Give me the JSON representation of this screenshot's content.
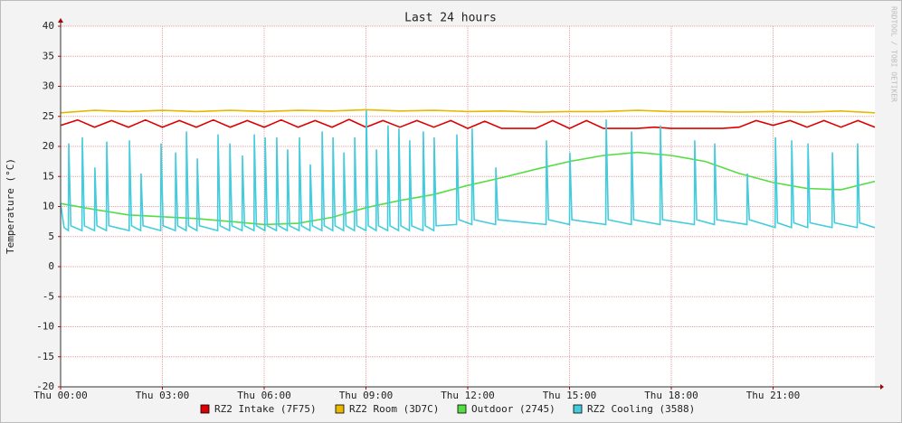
{
  "chart_data": {
    "type": "line",
    "title": "Last 24 hours",
    "y_label": "Temperature (°C)",
    "watermark": "RRDTOOL / TOBI OETIKER",
    "xlim": [
      0,
      24
    ],
    "xticks": [
      {
        "value": 0,
        "label": "Thu 00:00"
      },
      {
        "value": 3,
        "label": "Thu 03:00"
      },
      {
        "value": 6,
        "label": "Thu 06:00"
      },
      {
        "value": 9,
        "label": "Thu 09:00"
      },
      {
        "value": 12,
        "label": "Thu 12:00"
      },
      {
        "value": 15,
        "label": "Thu 15:00"
      },
      {
        "value": 18,
        "label": "Thu 18:00"
      },
      {
        "value": 21,
        "label": "Thu 21:00"
      }
    ],
    "ylim": [
      -20,
      40
    ],
    "yticks": [
      -20,
      -15,
      -10,
      -5,
      0,
      5,
      10,
      15,
      20,
      25,
      30,
      35,
      40
    ],
    "grid": true,
    "legend": "bottom",
    "series": [
      {
        "name": "RZ2 Intake (7F75)",
        "color": "#dd0000",
        "x": [
          0,
          0.5,
          1,
          1.5,
          2,
          2.5,
          3,
          3.5,
          4,
          4.5,
          5,
          5.5,
          6,
          6.5,
          7,
          7.5,
          8,
          8.5,
          9,
          9.5,
          10,
          10.5,
          11,
          11.5,
          12,
          12.5,
          13,
          13.5,
          14,
          14.5,
          15,
          15.5,
          16,
          16.5,
          17,
          17.5,
          18,
          18.5,
          19,
          19.5,
          20,
          20.5,
          21,
          21.5,
          22,
          22.5,
          23,
          23.5,
          24
        ],
        "values": [
          23.5,
          24.4,
          23.2,
          24.3,
          23.2,
          24.4,
          23.2,
          24.3,
          23.2,
          24.4,
          23.2,
          24.3,
          23.2,
          24.4,
          23.2,
          24.3,
          23.2,
          24.5,
          23.2,
          24.3,
          23.2,
          24.3,
          23.2,
          24.3,
          23,
          24.2,
          23,
          23,
          23,
          24.3,
          23,
          24.3,
          23,
          23,
          23,
          23.2,
          23,
          23,
          23,
          23,
          23.2,
          24.3,
          23.5,
          24.3,
          23.2,
          24.3,
          23.2,
          24.3,
          23.2
        ]
      },
      {
        "name": "RZ2 Room (3D7C)",
        "color": "#e8b800",
        "x": [
          0,
          1,
          2,
          3,
          4,
          5,
          6,
          7,
          8,
          9,
          10,
          11,
          12,
          13,
          14,
          15,
          16,
          17,
          18,
          19,
          20,
          21,
          22,
          23,
          24
        ],
        "values": [
          25.6,
          26,
          25.8,
          26,
          25.8,
          26,
          25.8,
          26,
          25.9,
          26.1,
          25.9,
          26,
          25.8,
          25.9,
          25.7,
          25.8,
          25.8,
          26,
          25.8,
          25.8,
          25.7,
          25.8,
          25.7,
          25.9,
          25.6
        ]
      },
      {
        "name": "Outdoor (2745)",
        "color": "#55dd44",
        "x": [
          0,
          1,
          2,
          3,
          4,
          5,
          6,
          7,
          8,
          9,
          10,
          11,
          12,
          13,
          14,
          15,
          16,
          17,
          18,
          19,
          20,
          21,
          22,
          23,
          24
        ],
        "values": [
          10.5,
          9.5,
          8.6,
          8.3,
          8.0,
          7.5,
          7.0,
          7.2,
          8.2,
          9.8,
          11,
          12,
          13.5,
          14.8,
          16.2,
          17.5,
          18.5,
          19,
          18.5,
          17.5,
          15.5,
          14,
          13,
          12.8,
          14.2
        ]
      },
      {
        "name": "RZ2 Cooling (3588)",
        "color": "#44ccdd",
        "x": [
          0,
          0.1,
          0.23,
          0.24,
          0.3,
          0.63,
          0.64,
          0.7,
          1.0,
          1.01,
          1.07,
          1.35,
          1.36,
          1.42,
          2.02,
          2.03,
          2.09,
          2.36,
          2.37,
          2.43,
          2.95,
          2.96,
          3.02,
          3.38,
          3.39,
          3.45,
          3.7,
          3.71,
          3.77,
          4.02,
          4.03,
          4.09,
          4.63,
          4.64,
          4.7,
          4.98,
          4.99,
          5.05,
          5.35,
          5.36,
          5.42,
          5.7,
          5.71,
          5.77,
          6.02,
          6.03,
          6.09,
          6.36,
          6.37,
          6.43,
          6.68,
          6.69,
          6.75,
          7.03,
          7.04,
          7.1,
          7.35,
          7.36,
          7.42,
          7.7,
          7.71,
          7.77,
          8.02,
          8.03,
          8.09,
          8.34,
          8.35,
          8.41,
          8.66,
          8.67,
          8.73,
          9.0,
          9.01,
          9.07,
          9.3,
          9.31,
          9.37,
          9.64,
          9.65,
          9.71,
          9.96,
          9.97,
          10.03,
          10.28,
          10.29,
          10.35,
          10.68,
          10.69,
          10.75,
          11.0,
          11.01,
          11.07,
          11.67,
          11.68,
          11.74,
          12.12,
          12.13,
          12.19,
          12.82,
          12.83,
          12.89,
          14.31,
          14.32,
          14.38,
          15.0,
          15.01,
          15.07,
          16.07,
          16.08,
          16.14,
          16.82,
          16.83,
          16.89,
          17.67,
          17.68,
          17.74,
          18.68,
          18.69,
          18.75,
          19.27,
          19.28,
          19.34,
          20.23,
          20.24,
          20.3,
          21.06,
          21.07,
          21.13,
          21.54,
          21.55,
          21.61,
          22.02,
          22.03,
          22.09,
          22.74,
          22.75,
          22.81,
          23.48,
          23.49,
          23.55,
          24
        ],
        "values": [
          10.5,
          6.5,
          6,
          20.5,
          6.8,
          6,
          21.5,
          6.8,
          6,
          16.5,
          6.8,
          6,
          20.8,
          6.8,
          6,
          21,
          6.8,
          6,
          15.5,
          6.8,
          6,
          20.5,
          6.8,
          6,
          19,
          6.8,
          6,
          22.5,
          6.8,
          6,
          18,
          6.8,
          6,
          22,
          6.8,
          6,
          20.5,
          6.8,
          6,
          18.5,
          6.8,
          6,
          22,
          6.8,
          6,
          21.5,
          6.8,
          6,
          21.5,
          6.8,
          6,
          19.5,
          6.8,
          6,
          21.5,
          6.8,
          6,
          17,
          6.8,
          6,
          22.5,
          6.8,
          6,
          21.5,
          6.8,
          6,
          19,
          6.8,
          6,
          21.5,
          6.8,
          6,
          26,
          6.8,
          6,
          19.5,
          6.8,
          6,
          23.5,
          6.8,
          6,
          23,
          6.8,
          6,
          21,
          6.8,
          6,
          22.5,
          6.8,
          6,
          21.5,
          6.8,
          7,
          22,
          7.8,
          7,
          23,
          7.8,
          7,
          16.5,
          7.8,
          7,
          21,
          7.8,
          7,
          19,
          7.8,
          7,
          24.5,
          7.8,
          7,
          22.5,
          7.8,
          7,
          23.5,
          7.8,
          7,
          21,
          7.8,
          7,
          20.5,
          7.8,
          7,
          15.5,
          7.8,
          6.5,
          21.5,
          7.3,
          6.5,
          21,
          7.3,
          6.5,
          20.5,
          7.3,
          6.5,
          19,
          7.3,
          6.5,
          20.5,
          7.3,
          6.5
        ]
      }
    ]
  }
}
